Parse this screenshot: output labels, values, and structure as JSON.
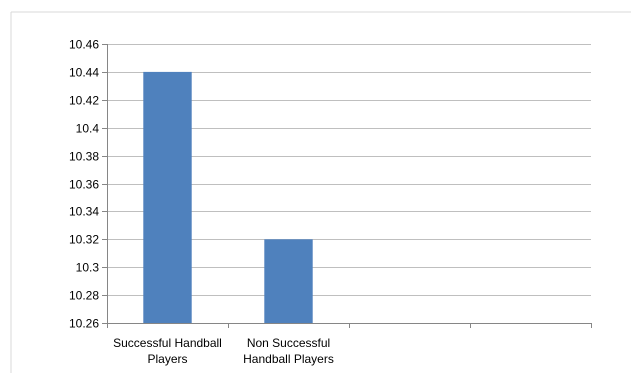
{
  "chart_data": {
    "type": "bar",
    "title": "",
    "xlabel": "",
    "ylabel": "",
    "categories": [
      [
        "Successful Handball",
        "Players"
      ],
      [
        "Non Successful",
        "Handball Players"
      ],
      [
        "",
        ""
      ],
      [
        "",
        ""
      ]
    ],
    "values": [
      10.44,
      10.32,
      null,
      null
    ],
    "ylim": [
      10.26,
      10.46
    ],
    "y_ticks": [
      "10.26",
      "10.28",
      "10.3",
      "10.32",
      "10.34",
      "10.36",
      "10.38",
      "10.4",
      "10.42",
      "10.44",
      "10.46"
    ],
    "grid": true,
    "legend": "none",
    "colors": {
      "bar": "#4F81BD",
      "grid": "#BFBFBF",
      "axis": "#868686",
      "frame": "#D9D9D9"
    }
  }
}
